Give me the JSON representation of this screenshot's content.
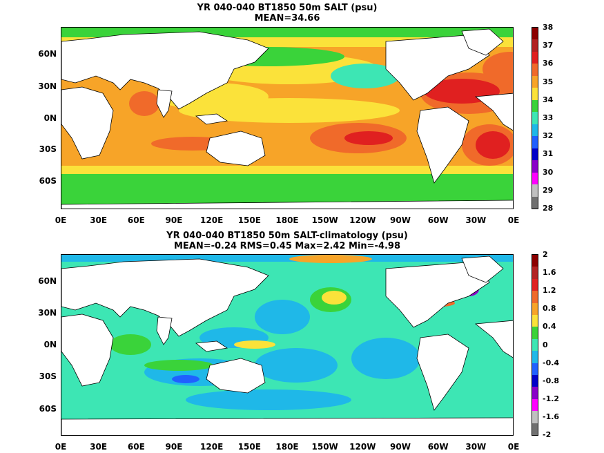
{
  "panel_top": {
    "title_line1": "YR 040-040 BT1850 50m SALT (psu)",
    "title_line2": "MEAN=34.66",
    "lat_labels": [
      "60N",
      "30N",
      "0N",
      "30S",
      "60S"
    ],
    "lon_labels": [
      "0E",
      "30E",
      "60E",
      "90E",
      "120E",
      "150E",
      "180E",
      "150W",
      "120W",
      "90W",
      "60W",
      "30W",
      "0E"
    ],
    "colorbar_labels": [
      "38",
      "37",
      "36",
      "35",
      "34",
      "33",
      "32",
      "31",
      "30",
      "29",
      "28"
    ],
    "colorbar_colors": [
      "#8b0000",
      "#b22222",
      "#e02020",
      "#f06a2a",
      "#f7a428",
      "#fbe23a",
      "#3ad33a",
      "#3de6b4",
      "#1fb8e8",
      "#2060ff",
      "#0000c8",
      "#8a00c8",
      "#ff00ff",
      "#c0c0c0",
      "#707070"
    ]
  },
  "panel_bottom": {
    "title_line1": "YR 040-040 BT1850 50m SALT-climatology (psu)",
    "title_line2": "MEAN=-0.24   RMS=0.45   Max=2.42   Min=-4.98",
    "lat_labels": [
      "60N",
      "30N",
      "0N",
      "30S",
      "60S"
    ],
    "lon_labels": [
      "0E",
      "30E",
      "60E",
      "90E",
      "120E",
      "150E",
      "180E",
      "150W",
      "120W",
      "90W",
      "60W",
      "30W",
      "0E"
    ],
    "colorbar_labels": [
      "2",
      "1.6",
      "1.2",
      "0.8",
      "0.4",
      "0",
      "-0.4",
      "-0.8",
      "-1.2",
      "-1.6",
      "-2"
    ],
    "colorbar_colors": [
      "#8b0000",
      "#b22222",
      "#e02020",
      "#f06a2a",
      "#f7a428",
      "#fbe23a",
      "#3ad33a",
      "#3de6b4",
      "#1fb8e8",
      "#2060ff",
      "#0000c8",
      "#8a00c8",
      "#ff00ff",
      "#c0c0c0",
      "#707070"
    ]
  },
  "colors": {
    "land": "#ffffff",
    "coast": "#000000"
  }
}
